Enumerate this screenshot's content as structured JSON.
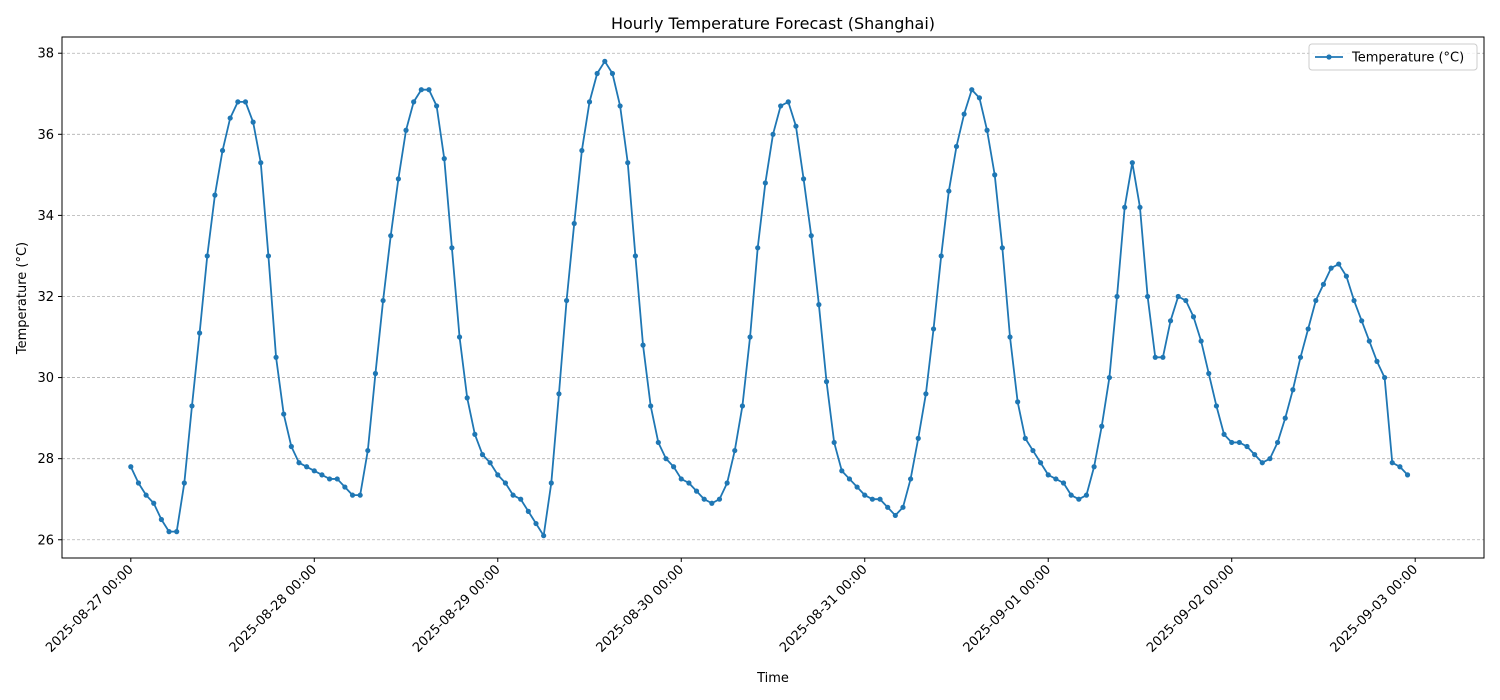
{
  "chart_data": {
    "type": "line",
    "title": "Hourly Temperature Forecast (Shanghai)",
    "xlabel": "Time",
    "ylabel": "Temperature (°C)",
    "ylim": [
      25.55,
      38.4
    ],
    "xlim": [
      "2025-08-26T15:00",
      "2025-09-03T09:00"
    ],
    "y_ticks": [
      26,
      28,
      30,
      32,
      34,
      36,
      38
    ],
    "x_ticks": [
      "2025-08-27 00:00",
      "2025-08-28 00:00",
      "2025-08-29 00:00",
      "2025-08-30 00:00",
      "2025-08-31 00:00",
      "2025-09-01 00:00",
      "2025-09-02 00:00",
      "2025-09-03 00:00"
    ],
    "grid": "y-axis dashed",
    "legend_position": "top-right",
    "series": [
      {
        "name": "Temperature (°C)",
        "color": "#1f77b4",
        "x_start": "2025-08-27 00:00",
        "x_step": "1 hour",
        "values": [
          27.8,
          27.4,
          27.1,
          26.9,
          26.5,
          26.2,
          26.2,
          27.4,
          29.3,
          31.1,
          33.0,
          34.5,
          35.6,
          36.4,
          36.8,
          36.8,
          36.3,
          35.3,
          33.0,
          30.5,
          29.1,
          28.3,
          27.9,
          27.8,
          27.7,
          27.6,
          27.5,
          27.5,
          27.3,
          27.1,
          27.1,
          28.2,
          30.1,
          31.9,
          33.5,
          34.9,
          36.1,
          36.8,
          37.1,
          37.1,
          36.7,
          35.4,
          33.2,
          31.0,
          29.5,
          28.6,
          28.1,
          27.9,
          27.6,
          27.4,
          27.1,
          27.0,
          26.7,
          26.4,
          26.1,
          27.4,
          29.6,
          31.9,
          33.8,
          35.6,
          36.8,
          37.5,
          37.8,
          37.5,
          36.7,
          35.3,
          33.0,
          30.8,
          29.3,
          28.4,
          28.0,
          27.8,
          27.5,
          27.4,
          27.2,
          27.0,
          26.9,
          27.0,
          27.4,
          28.2,
          29.3,
          31.0,
          33.2,
          34.8,
          36.0,
          36.7,
          36.8,
          36.2,
          34.9,
          33.5,
          31.8,
          29.9,
          28.4,
          27.7,
          27.5,
          27.3,
          27.1,
          27.0,
          27.0,
          26.8,
          26.6,
          26.8,
          27.5,
          28.5,
          29.6,
          31.2,
          33.0,
          34.6,
          35.7,
          36.5,
          37.1,
          36.9,
          36.1,
          35.0,
          33.2,
          31.0,
          29.4,
          28.5,
          28.2,
          27.9,
          27.6,
          27.5,
          27.4,
          27.1,
          27.0,
          27.1,
          27.8,
          28.8,
          30.0,
          32.0,
          34.2,
          35.3,
          34.2,
          32.0,
          30.5,
          30.5,
          31.4,
          32.0,
          31.9,
          31.5,
          30.9,
          30.1,
          29.3,
          28.6,
          28.4,
          28.4,
          28.3,
          28.1,
          27.9,
          28.0,
          28.4,
          29.0,
          29.7,
          30.5,
          31.2,
          31.9,
          32.3,
          32.7,
          32.8,
          32.5,
          31.9,
          31.4,
          30.9,
          30.4,
          30.0,
          27.9,
          27.8,
          27.6
        ]
      }
    ]
  }
}
